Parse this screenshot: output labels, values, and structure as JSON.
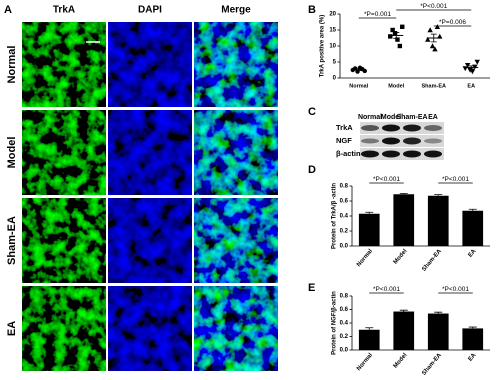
{
  "panel_a": {
    "label": "A",
    "columns": [
      "TrkA",
      "DAPI",
      "Merge"
    ],
    "rows": [
      "Normal",
      "Model",
      "Sham-EA",
      "EA"
    ]
  },
  "panel_c": {
    "label": "C",
    "lanes": [
      "Normal",
      "Model",
      "Sham-EA",
      "EA"
    ],
    "proteins": [
      "TrkA",
      "NGF",
      "β-actin"
    ]
  },
  "chart_data": [
    {
      "label": "B",
      "type": "dot",
      "y_label": "TrkA positive area (%)",
      "categories": [
        "Normal",
        "Model",
        "Sham-EA",
        "EA"
      ],
      "points": [
        [
          2.5,
          3.0,
          2.0,
          3.2,
          2.8,
          2.2
        ],
        [
          13,
          15,
          14,
          12,
          10,
          16
        ],
        [
          12,
          15,
          10,
          9,
          16,
          13
        ],
        [
          3,
          4,
          2.5,
          2,
          3.5,
          5
        ]
      ],
      "means": [
        2.6,
        13.3,
        12.5,
        3.3
      ],
      "errors": [
        0.3,
        0.9,
        1.2,
        0.5
      ],
      "markers": [
        "circle",
        "square",
        "triangle",
        "triangle-down"
      ],
      "color": "#000000",
      "ylim": [
        0,
        20
      ],
      "yticks": [
        0,
        5,
        10,
        15,
        20
      ],
      "annotations": [
        "*P=0.001",
        "*P<0.001",
        "*P=0.006"
      ]
    },
    {
      "label": "D",
      "type": "bar",
      "y_label": "Protein of TrkA/β -actin",
      "categories": [
        "Normal",
        "Model",
        "Sham-EA",
        "EA"
      ],
      "values": [
        0.43,
        0.69,
        0.67,
        0.47
      ],
      "errors": [
        0.02,
        0.01,
        0.015,
        0.02
      ],
      "color": "#000000",
      "ylim": [
        0,
        0.8
      ],
      "yticks": [
        {
          "value": 0,
          "label": "0.0"
        },
        0.2,
        0.4,
        0.6,
        0.8
      ],
      "annotations": [
        "*P<0.001",
        "*P<0.001"
      ]
    },
    {
      "label": "E",
      "type": "bar",
      "y_label": "Protein of NGF/β-actin",
      "categories": [
        "Normal",
        "Model",
        "Sham-EA",
        "EA"
      ],
      "values": [
        0.3,
        0.57,
        0.54,
        0.32
      ],
      "errors": [
        0.03,
        0.02,
        0.02,
        0.02
      ],
      "color": "#000000",
      "ylim": [
        0,
        0.8
      ],
      "yticks": [
        {
          "value": 0,
          "label": "0.0"
        },
        0.2,
        0.4,
        0.6,
        0.8
      ],
      "annotations": [
        "*P<0.001",
        "*P<0.001"
      ]
    }
  ]
}
